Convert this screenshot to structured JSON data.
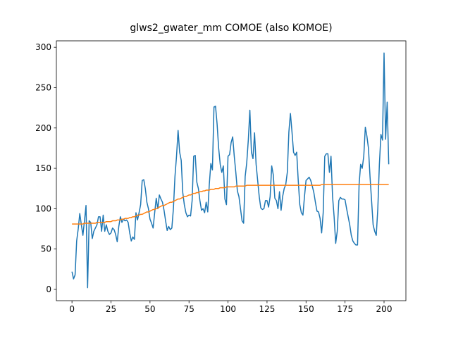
{
  "chart_data": {
    "type": "line",
    "title": "glws2_gwater_mm COMOE (also KOMOE)",
    "x": [
      0,
      1,
      2,
      3,
      4,
      5,
      6,
      7,
      8,
      9,
      10,
      11,
      12,
      13,
      14,
      15,
      16,
      17,
      18,
      19,
      20,
      21,
      22,
      23,
      24,
      25,
      26,
      27,
      28,
      29,
      30,
      31,
      32,
      33,
      34,
      35,
      36,
      37,
      38,
      39,
      40,
      41,
      42,
      43,
      44,
      45,
      46,
      47,
      48,
      49,
      50,
      51,
      52,
      53,
      54,
      55,
      56,
      57,
      58,
      59,
      60,
      61,
      62,
      63,
      64,
      65,
      66,
      67,
      68,
      69,
      70,
      71,
      72,
      73,
      74,
      75,
      76,
      77,
      78,
      79,
      80,
      81,
      82,
      83,
      84,
      85,
      86,
      87,
      88,
      89,
      90,
      91,
      92,
      93,
      94,
      95,
      96,
      97,
      98,
      99,
      100,
      101,
      102,
      103,
      104,
      105,
      106,
      107,
      108,
      109,
      110,
      111,
      112,
      113,
      114,
      115,
      116,
      117,
      118,
      119,
      120,
      121,
      122,
      123,
      124,
      125,
      126,
      127,
      128,
      129,
      130,
      131,
      132,
      133,
      134,
      135,
      136,
      137,
      138,
      139,
      140,
      141,
      142,
      143,
      144,
      145,
      146,
      147,
      148,
      149,
      150,
      151,
      152,
      153,
      154,
      155,
      156,
      157,
      158,
      159,
      160,
      161,
      162,
      163,
      164,
      165,
      166,
      167,
      168,
      169,
      170,
      171,
      172,
      173,
      174,
      175,
      176,
      177,
      178,
      179,
      180,
      181,
      182,
      183,
      184,
      185,
      186,
      187,
      188,
      189,
      190,
      191,
      192,
      193,
      194,
      195,
      196,
      197,
      198,
      199,
      200,
      201,
      202,
      203
    ],
    "series": [
      {
        "color": "#1f77b4",
        "values": [
          22,
          13,
          18,
          60,
          75,
          94,
          80,
          67,
          85,
          104,
          2,
          85,
          83,
          63,
          72,
          76,
          80,
          90,
          90,
          72,
          92,
          72,
          80,
          72,
          68,
          70,
          76,
          74,
          68,
          59,
          78,
          90,
          83,
          87,
          85,
          86,
          83,
          70,
          60,
          65,
          62,
          95,
          86,
          95,
          105,
          135,
          136,
          125,
          108,
          100,
          87,
          82,
          76,
          95,
          113,
          100,
          117,
          112,
          108,
          98,
          85,
          73,
          78,
          74,
          76,
          100,
          140,
          165,
          197,
          170,
          160,
          120,
          105,
          95,
          90,
          92,
          91,
          110,
          165,
          166,
          133,
          125,
          110,
          98,
          100,
          95,
          108,
          96,
          130,
          156,
          148,
          226,
          227,
          205,
          175,
          155,
          145,
          153,
          112,
          105,
          165,
          167,
          182,
          189,
          165,
          145,
          122,
          115,
          100,
          85,
          82,
          140,
          157,
          185,
          222,
          170,
          162,
          194,
          155,
          135,
          115,
          101,
          99,
          100,
          110,
          110,
          102,
          115,
          153,
          142,
          113,
          110,
          100,
          121,
          98,
          115,
          125,
          130,
          145,
          195,
          218,
          195,
          170,
          166,
          170,
          135,
          105,
          95,
          92,
          115,
          135,
          137,
          139,
          135,
          128,
          120,
          108,
          97,
          96,
          88,
          70,
          95,
          165,
          168,
          168,
          145,
          165,
          115,
          90,
          57,
          72,
          110,
          114,
          112,
          112,
          111,
          100,
          90,
          80,
          67,
          60,
          57,
          55,
          55,
          130,
          155,
          150,
          165,
          201,
          190,
          175,
          140,
          110,
          80,
          72,
          67,
          100,
          155,
          192,
          185,
          293,
          186,
          232,
          155
        ]
      },
      {
        "color": "#ff7f0e",
        "values": [
          81,
          81,
          81,
          81,
          81,
          81,
          81,
          81,
          82,
          82,
          82,
          82,
          82,
          82,
          82,
          82,
          83,
          83,
          83,
          83,
          83,
          83,
          84,
          84,
          84,
          84,
          85,
          85,
          85,
          86,
          86,
          86,
          87,
          87,
          88,
          88,
          88,
          89,
          89,
          90,
          90,
          91,
          92,
          92,
          93,
          93,
          94,
          95,
          96,
          96,
          97,
          98,
          99,
          99,
          100,
          101,
          102,
          103,
          104,
          104,
          105,
          106,
          107,
          108,
          108,
          109,
          110,
          111,
          112,
          112,
          113,
          114,
          115,
          115,
          116,
          117,
          117,
          118,
          119,
          119,
          120,
          120,
          121,
          121,
          122,
          122,
          123,
          123,
          123,
          124,
          124,
          124,
          125,
          125,
          125,
          126,
          126,
          126,
          126,
          127,
          127,
          127,
          127,
          127,
          127,
          128,
          128,
          128,
          128,
          128,
          128,
          128,
          129,
          129,
          129,
          129,
          129,
          129,
          129,
          129,
          129,
          129,
          129,
          129,
          129,
          129,
          129,
          129,
          129,
          129,
          129,
          129,
          129,
          129,
          129,
          129,
          129,
          129,
          129,
          129,
          129,
          129,
          129,
          129,
          129,
          129,
          129,
          129,
          129,
          129,
          129,
          129,
          129,
          129,
          129,
          129,
          129,
          129,
          129,
          129,
          130,
          130,
          130,
          130,
          130,
          130,
          130,
          130,
          130,
          130,
          130,
          130,
          130,
          130,
          130,
          130,
          130,
          130,
          130,
          130,
          130,
          130,
          130,
          130,
          130,
          130,
          130,
          130,
          130,
          130,
          130,
          130,
          130,
          130,
          130,
          130,
          130,
          130,
          130,
          130,
          130,
          130,
          130,
          130
        ]
      }
    ],
    "xlim": [
      -10,
      214
    ],
    "ylim": [
      -14,
      308
    ],
    "xticks": [
      0,
      25,
      50,
      75,
      100,
      125,
      150,
      175,
      200
    ],
    "yticks": [
      0,
      50,
      100,
      150,
      200,
      250,
      300
    ],
    "grid": false
  }
}
